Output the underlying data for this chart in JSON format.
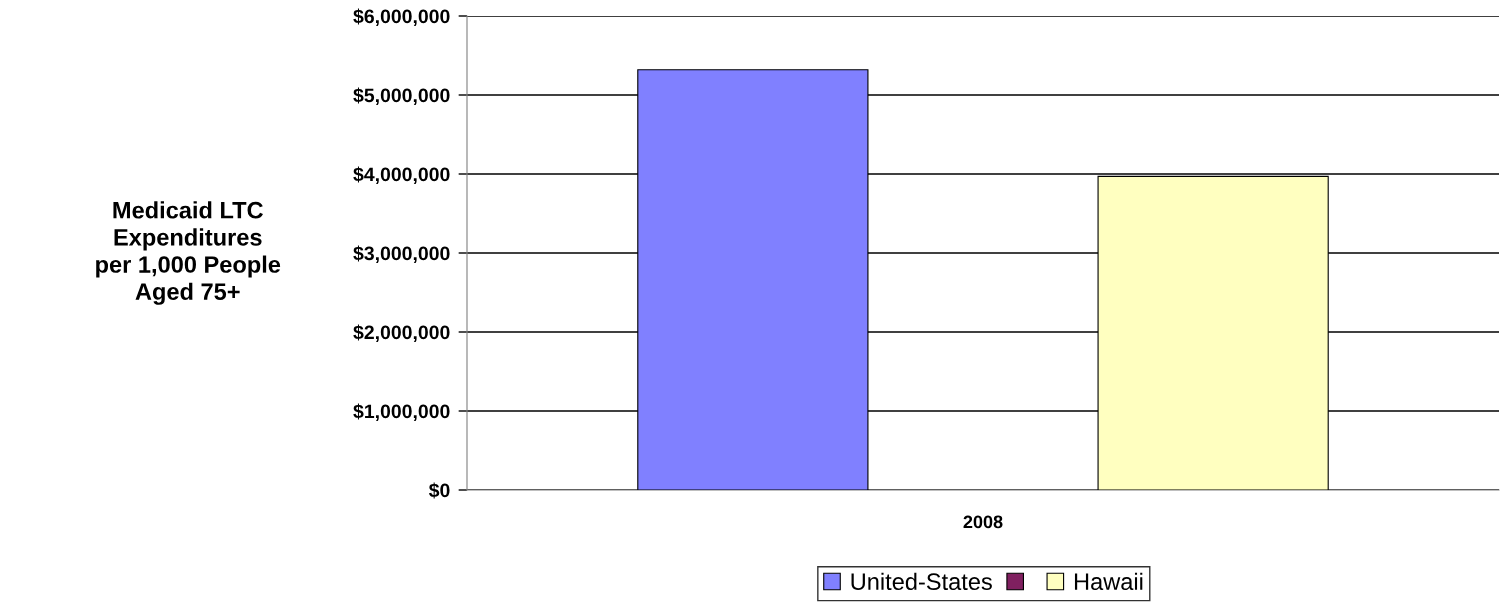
{
  "chart_data": {
    "type": "bar",
    "ylabel": "Medicaid LTC\nExpenditures\nper 1,000 People\nAged 75+",
    "categories": [
      "2008"
    ],
    "series": [
      {
        "name": "United-States",
        "color": "#8080ff",
        "values": [
          5320000
        ]
      },
      {
        "color": "#802060",
        "values": [
          null
        ]
      },
      {
        "name": "Hawaii",
        "color": "#ffffc0",
        "values": [
          3970000
        ]
      }
    ],
    "ylim": [
      0,
      6000000
    ],
    "yticks": [
      {
        "value": 0,
        "label": "$0"
      },
      {
        "value": 1000000,
        "label": "$1,000,000"
      },
      {
        "value": 2000000,
        "label": "$2,000,000"
      },
      {
        "value": 3000000,
        "label": "$3,000,000"
      },
      {
        "value": 4000000,
        "label": "$4,000,000"
      },
      {
        "value": 5000000,
        "label": "$5,000,000"
      },
      {
        "value": 6000000,
        "label": "$6,000,000"
      }
    ],
    "grid": "y",
    "legend": "bottom"
  }
}
